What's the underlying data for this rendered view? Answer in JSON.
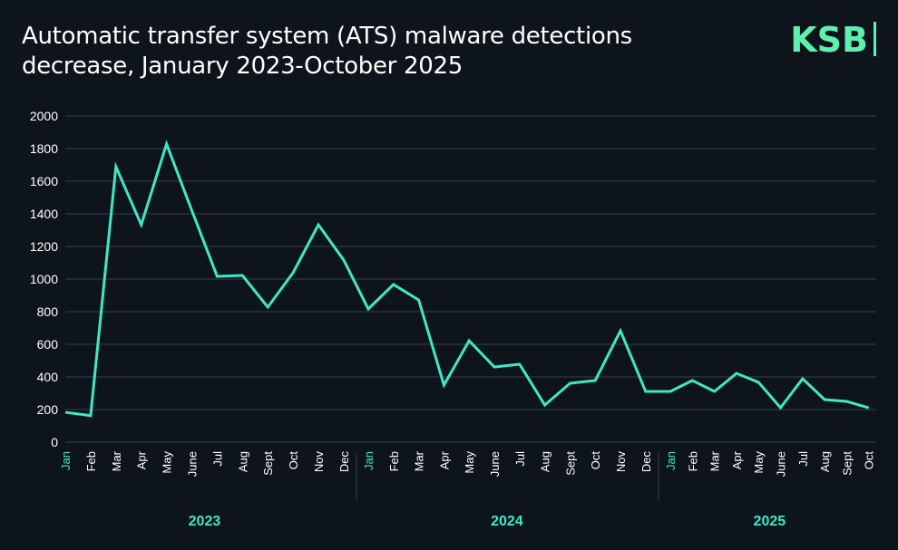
{
  "title_line1": "Automatic transfer system (ATS) malware detections",
  "title_line2": "decrease, January 2023-October 2025",
  "logo": "KSB",
  "colors": {
    "background": "#0e141c",
    "line": "#3ee8c6",
    "grid": "#3a4048",
    "accent_text": "#3ee8c6",
    "logo": "#5ef0b0"
  },
  "chart_data": {
    "type": "line",
    "title": "Automatic transfer system (ATS) malware detections decrease, January 2023-October 2025",
    "ylim": [
      0,
      2000
    ],
    "yticks": [
      0,
      200,
      400,
      600,
      800,
      1000,
      1200,
      1400,
      1600,
      1800,
      2000
    ],
    "grid": true,
    "years": [
      {
        "label": "2023",
        "months": [
          "Jan",
          "Feb",
          "Mar",
          "Apr",
          "May",
          "June",
          "Jul",
          "Aug",
          "Sept",
          "Oct",
          "Nov",
          "Dec"
        ]
      },
      {
        "label": "2024",
        "months": [
          "Jan",
          "Feb",
          "Mar",
          "Apr",
          "May",
          "June",
          "Jul",
          "Aug",
          "Sept",
          "Oct",
          "Nov",
          "Dec"
        ]
      },
      {
        "label": "2025",
        "months": [
          "Jan",
          "Feb",
          "Mar",
          "Apr",
          "May",
          "June",
          "Jul",
          "Aug",
          "Sept",
          "Oct"
        ]
      }
    ],
    "values": [
      183,
      163,
      1689,
      1333,
      1828,
      1420,
      1017,
      1022,
      828,
      1039,
      1333,
      1117,
      817,
      967,
      872,
      350,
      622,
      461,
      478,
      228,
      361,
      378,
      683,
      311,
      311,
      378,
      311,
      422,
      367,
      211,
      389,
      261,
      250,
      211
    ]
  }
}
